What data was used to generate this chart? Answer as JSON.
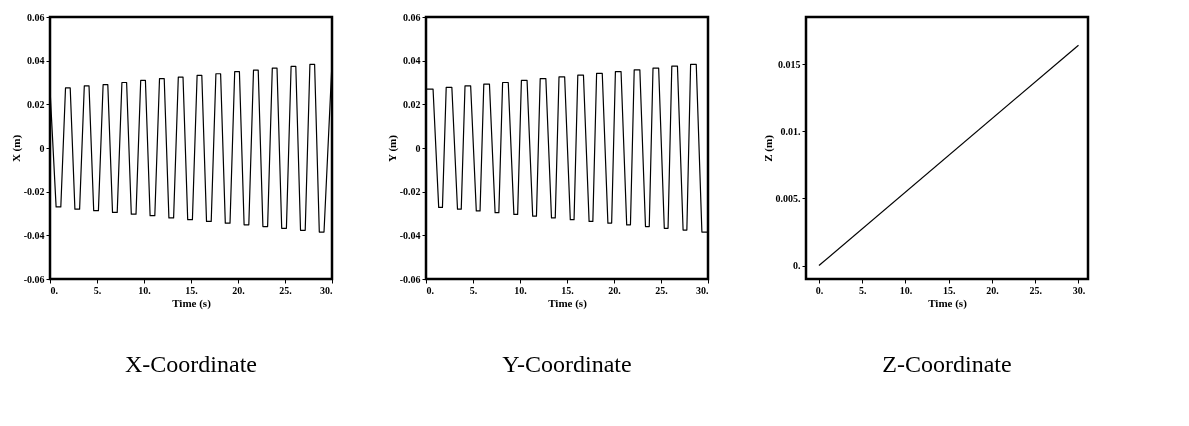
{
  "chart_data": [
    {
      "type": "line",
      "title": "X-Coordinate",
      "xlabel": "Time (s)",
      "ylabel": "X (m)",
      "xlim": [
        0,
        30
      ],
      "ylim": [
        -0.06,
        0.06
      ],
      "xticks": [
        {
          "value": 0,
          "label": "0."
        },
        {
          "value": 5,
          "label": "5."
        },
        {
          "value": 10,
          "label": "10."
        },
        {
          "value": 15,
          "label": "15."
        },
        {
          "value": 20,
          "label": "20."
        },
        {
          "value": 25,
          "label": "25."
        },
        {
          "value": 30,
          "label": "30."
        }
      ],
      "yticks": [
        -0.06,
        -0.04,
        -0.02,
        0,
        0.02,
        0.04,
        0.06
      ],
      "grid": false,
      "series": [
        {
          "color": "#000000",
          "x": [
            0,
            0.65,
            1.15,
            1.65,
            2.15,
            2.65,
            3.15,
            3.65,
            4.15,
            4.65,
            5.15,
            5.65,
            6.15,
            6.65,
            7.15,
            7.65,
            8.15,
            8.65,
            9.15,
            9.65,
            10.15,
            10.65,
            11.15,
            11.65,
            12.15,
            12.65,
            13.15,
            13.65,
            14.15,
            14.65,
            15.15,
            15.65,
            16.15,
            16.65,
            17.15,
            17.65,
            18.15,
            18.65,
            19.15,
            19.65,
            20.15,
            20.65,
            21.15,
            21.65,
            22.15,
            22.65,
            23.15,
            23.65,
            24.15,
            24.65,
            25.15,
            25.65,
            26.15,
            26.65,
            27.15,
            27.65,
            28.15,
            28.65,
            29.15,
            30
          ],
          "values": [
            0.027,
            -0.027,
            -0.027,
            0.0275,
            0.0275,
            -0.028,
            -0.028,
            0.0285,
            0.0285,
            -0.0287,
            -0.0287,
            0.029,
            0.029,
            -0.0295,
            -0.0295,
            0.03,
            0.03,
            -0.0303,
            -0.0303,
            0.031,
            0.031,
            -0.031,
            -0.031,
            0.0318,
            0.0318,
            -0.032,
            -0.032,
            0.0325,
            0.0325,
            -0.0328,
            -0.0328,
            0.0333,
            0.0333,
            -0.0336,
            -0.0336,
            0.034,
            0.034,
            -0.0344,
            -0.0344,
            0.035,
            0.035,
            -0.0352,
            -0.0352,
            0.0357,
            0.0357,
            -0.036,
            -0.036,
            0.0366,
            0.0366,
            -0.0368,
            -0.0368,
            0.0374,
            0.0374,
            -0.0377,
            -0.0377,
            0.0383,
            0.0383,
            -0.0385,
            -0.0385,
            0.039
          ]
        }
      ]
    },
    {
      "type": "line",
      "title": "Y-Coordinate",
      "xlabel": "Time (s)",
      "ylabel": "Y (m)",
      "xlim": [
        0,
        30
      ],
      "ylim": [
        -0.06,
        0.06
      ],
      "xticks": [
        {
          "value": 0,
          "label": "0."
        },
        {
          "value": 5,
          "label": "5."
        },
        {
          "value": 10,
          "label": "10."
        },
        {
          "value": 15,
          "label": "15."
        },
        {
          "value": 20,
          "label": "20."
        },
        {
          "value": 25,
          "label": "25."
        },
        {
          "value": 30,
          "label": "30."
        }
      ],
      "yticks": [
        -0.06,
        -0.04,
        -0.02,
        0,
        0.02,
        0.04,
        0.06
      ],
      "grid": false,
      "series": [
        {
          "color": "#000000",
          "x": [
            0,
            0.75,
            1.35,
            1.75,
            2.15,
            2.75,
            3.35,
            3.75,
            4.15,
            4.75,
            5.35,
            5.75,
            6.15,
            6.75,
            7.35,
            7.75,
            8.15,
            8.75,
            9.35,
            9.75,
            10.15,
            10.75,
            11.35,
            11.75,
            12.15,
            12.75,
            13.35,
            13.75,
            14.15,
            14.75,
            15.35,
            15.75,
            16.15,
            16.75,
            17.35,
            17.75,
            18.15,
            18.75,
            19.35,
            19.75,
            20.15,
            20.75,
            21.35,
            21.75,
            22.15,
            22.75,
            23.35,
            23.75,
            24.15,
            24.75,
            25.35,
            25.75,
            26.15,
            26.75,
            27.35,
            27.75,
            28.15,
            28.75,
            29.35,
            29.9
          ],
          "values": [
            0.027,
            0.027,
            -0.0272,
            -0.0272,
            0.0278,
            0.0278,
            -0.028,
            -0.028,
            0.0285,
            0.0285,
            -0.0288,
            -0.0288,
            0.0293,
            0.0293,
            -0.0296,
            -0.0296,
            0.03,
            0.03,
            -0.0304,
            -0.0304,
            0.031,
            0.031,
            -0.0312,
            -0.0312,
            0.0318,
            0.0318,
            -0.032,
            -0.032,
            0.0326,
            0.0326,
            -0.0328,
            -0.0328,
            0.0334,
            0.0334,
            -0.0336,
            -0.0336,
            0.0342,
            0.0342,
            -0.0344,
            -0.0344,
            0.035,
            0.035,
            -0.0352,
            -0.0352,
            0.0358,
            0.0358,
            -0.036,
            -0.036,
            0.0366,
            0.0366,
            -0.0368,
            -0.0368,
            0.0375,
            0.0375,
            -0.0376,
            -0.0376,
            0.0383,
            0.0383,
            -0.0385,
            -0.0385
          ]
        }
      ]
    },
    {
      "type": "line",
      "title": "Z-Coordinate",
      "xlabel": "Time (s)",
      "ylabel": "Z (m)",
      "xlim": [
        -1.5,
        31.1
      ],
      "ylim": [
        -0.001,
        0.0185
      ],
      "xticks": [
        {
          "value": 0,
          "label": "0."
        },
        {
          "value": 5,
          "label": "5."
        },
        {
          "value": 10,
          "label": "10."
        },
        {
          "value": 15,
          "label": "15."
        },
        {
          "value": 20,
          "label": "20."
        },
        {
          "value": 25,
          "label": "25."
        },
        {
          "value": 30,
          "label": "30."
        }
      ],
      "yticks": [
        {
          "value": 0,
          "label": "0."
        },
        {
          "value": 0.005,
          "label": "0.005."
        },
        {
          "value": 0.01,
          "label": "0.01."
        },
        0.015
      ],
      "grid": false,
      "series": [
        {
          "color": "#000000",
          "x": [
            0,
            30
          ],
          "values": [
            0,
            0.0164
          ]
        }
      ]
    }
  ]
}
